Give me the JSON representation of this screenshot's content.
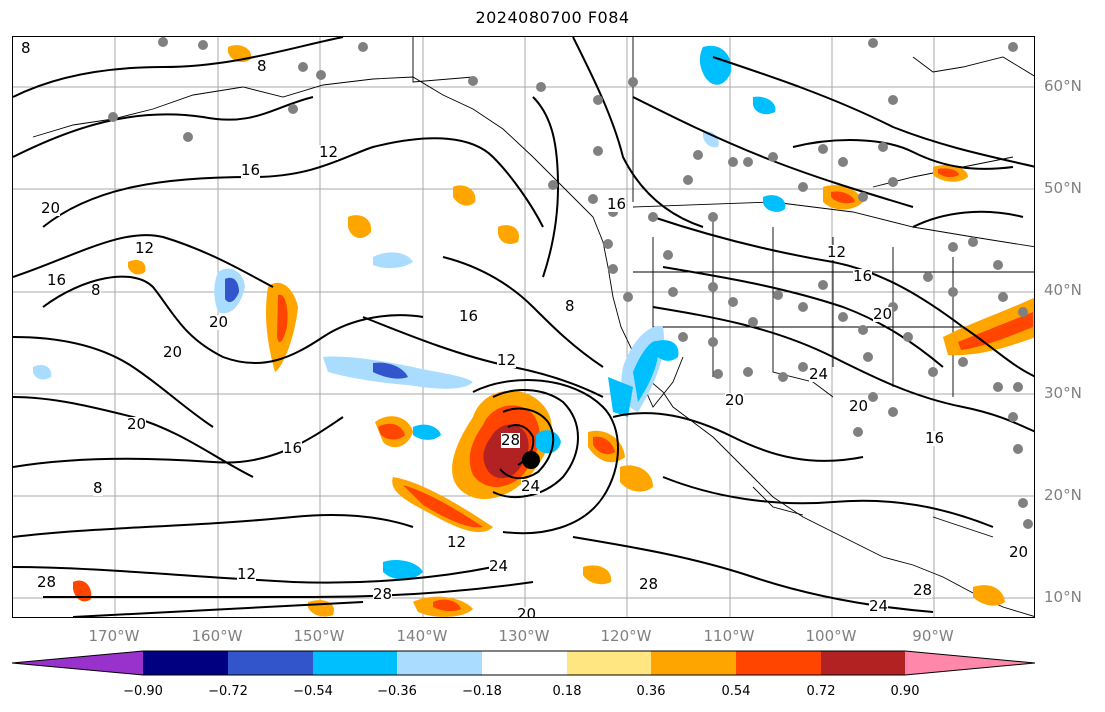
{
  "title": "2024080700 F084",
  "lat_labels": [
    "60°N",
    "50°N",
    "40°N",
    "30°N",
    "20°N",
    "10°N"
  ],
  "lon_labels": [
    "170°W",
    "160°W",
    "150°W",
    "140°W",
    "130°W",
    "120°W",
    "110°W",
    "100°W",
    "90°W"
  ],
  "contour_labels": [
    "8",
    "8",
    "20",
    "16",
    "12",
    "12",
    "16",
    "20",
    "8",
    "16",
    "16",
    "12",
    "20",
    "20",
    "20",
    "16",
    "8",
    "28",
    "12",
    "24",
    "28",
    "8",
    "12",
    "24",
    "28",
    "16",
    "20",
    "12",
    "24",
    "20",
    "16",
    "28",
    "24",
    "28",
    "20",
    "20"
  ],
  "colorbar": {
    "ticks": [
      "−0.90",
      "−0.72",
      "−0.54",
      "−0.36",
      "−0.18",
      "0.18",
      "0.36",
      "0.54",
      "0.72",
      "0.90"
    ],
    "colors": [
      "#9932cc",
      "#000080",
      "#3355cc",
      "#00bfff",
      "#aadcff",
      "#ffffff",
      "#ffe680",
      "#ffa500",
      "#ff4500",
      "#b22222",
      "#ff88aa"
    ]
  },
  "storm_center_marker": "black-dot",
  "station_marker_color": "#808080"
}
